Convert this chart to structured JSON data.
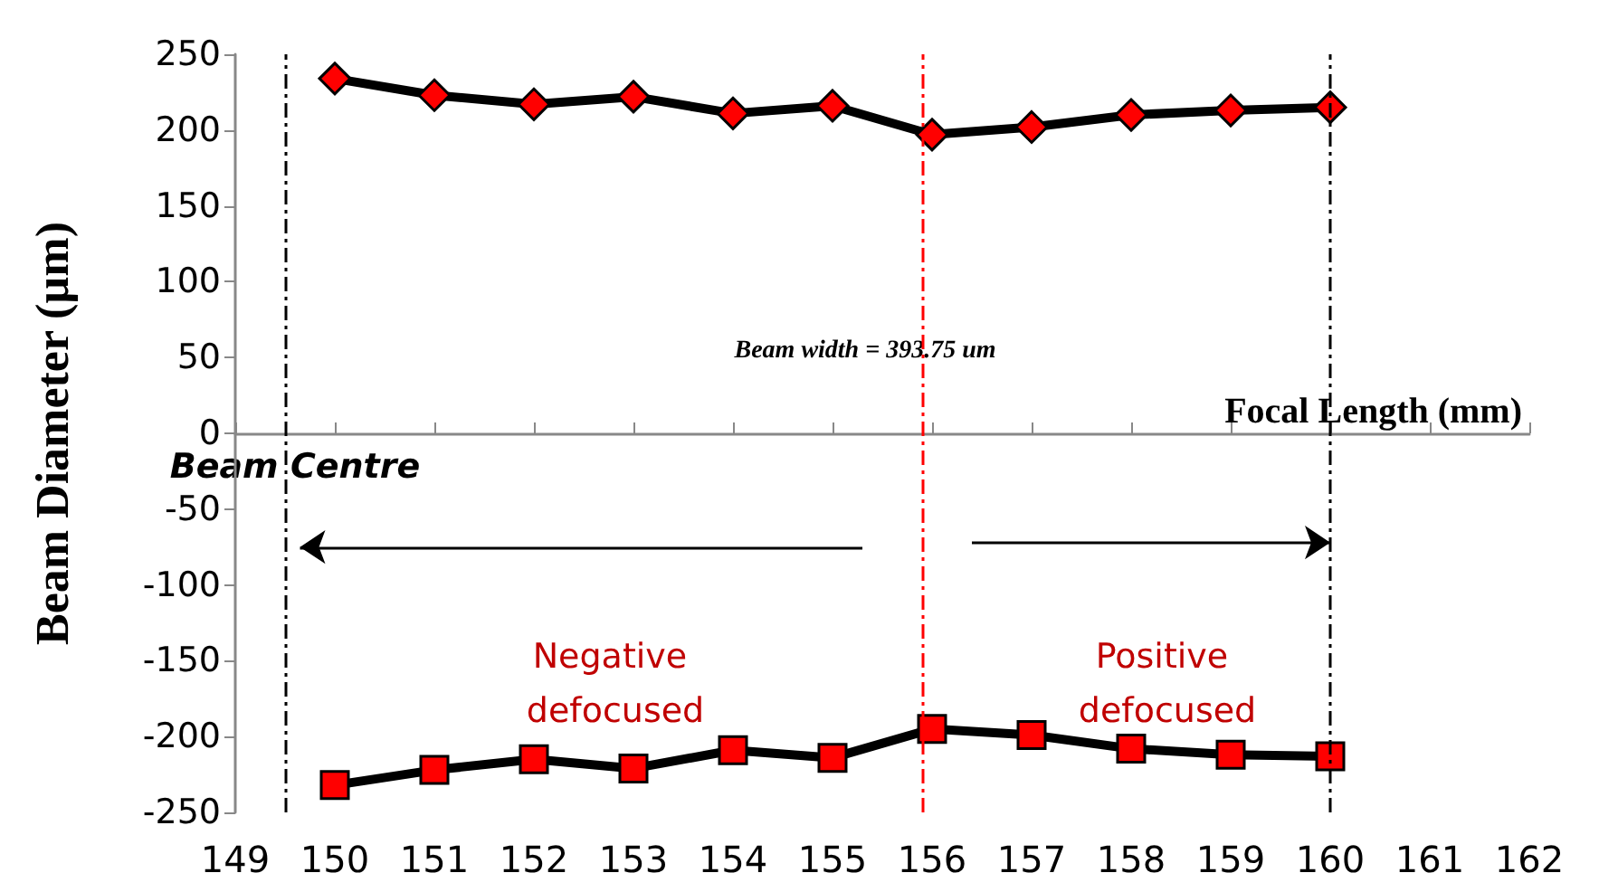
{
  "chart_data": {
    "type": "line",
    "xlabel": "Focal Length (mm)",
    "ylabel": "Beam Diameter (µm)",
    "x": [
      150,
      151,
      152,
      153,
      154,
      155,
      156,
      157,
      158,
      159,
      160
    ],
    "series": [
      {
        "color": "#ff0000",
        "marker": "diamond",
        "values": [
          234,
          223,
          217,
          222,
          211,
          216,
          197,
          202,
          210,
          213,
          215
        ]
      },
      {
        "color": "#ff0000",
        "marker": "square",
        "values": [
          -232,
          -222,
          -215,
          -221,
          -209,
          -214,
          -195,
          -199,
          -208,
          -212,
          -213
        ]
      }
    ],
    "xlim": [
      149,
      162
    ],
    "xticks": [
      149,
      150,
      151,
      152,
      153,
      154,
      155,
      156,
      157,
      158,
      159,
      160,
      161,
      162
    ],
    "ylim": [
      -250,
      250
    ],
    "yticks": [
      -250,
      -200,
      -150,
      -100,
      -50,
      0,
      50,
      100,
      150,
      200,
      250
    ],
    "grid": false,
    "line_style": "solid",
    "ref_lines": [
      {
        "axis": "x",
        "value": 149.5,
        "color": "#000000",
        "line_style": "dashed"
      },
      {
        "axis": "x",
        "value": 160,
        "color": "#000000",
        "line_style": "dashed"
      },
      {
        "axis": "x",
        "value": 155.9,
        "color": "#ff0000",
        "line_style": "dashed"
      }
    ],
    "annotations": [
      "Beam width = 393.75 um",
      "Beam Centre",
      "Negative defocused",
      "Positive defocused"
    ]
  }
}
